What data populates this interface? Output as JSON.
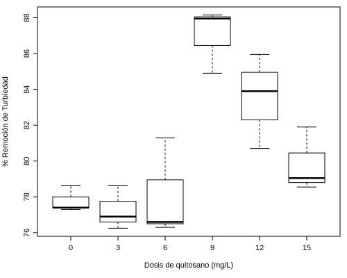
{
  "chart_data": {
    "type": "boxplot",
    "xlabel": "Dosis de quitosano (mg/L)",
    "ylabel": "% Remoción de Turbiedad",
    "ylim": [
      75.8,
      88.6
    ],
    "yticks": [
      76,
      78,
      80,
      82,
      84,
      86,
      88
    ],
    "grid": false,
    "categories": [
      "0",
      "3",
      "6",
      "9",
      "12",
      "15"
    ],
    "boxes": [
      {
        "category": "0",
        "min": 77.3,
        "q1": 77.4,
        "median": 77.4,
        "q3": 78.0,
        "max": 78.65
      },
      {
        "category": "3",
        "min": 76.25,
        "q1": 76.6,
        "median": 76.9,
        "q3": 77.75,
        "max": 78.65
      },
      {
        "category": "6",
        "min": 76.3,
        "q1": 76.5,
        "median": 76.6,
        "q3": 78.95,
        "max": 81.3
      },
      {
        "category": "9",
        "min": 84.9,
        "q1": 86.45,
        "median": 87.95,
        "q3": 88.05,
        "max": 88.15
      },
      {
        "category": "12",
        "min": 80.7,
        "q1": 82.3,
        "median": 83.9,
        "q3": 84.95,
        "max": 85.95
      },
      {
        "category": "15",
        "min": 78.55,
        "q1": 78.8,
        "median": 79.05,
        "q3": 80.45,
        "max": 81.9
      }
    ],
    "colors": {
      "box_fill": "#ffffff",
      "stroke": "#000000"
    }
  }
}
